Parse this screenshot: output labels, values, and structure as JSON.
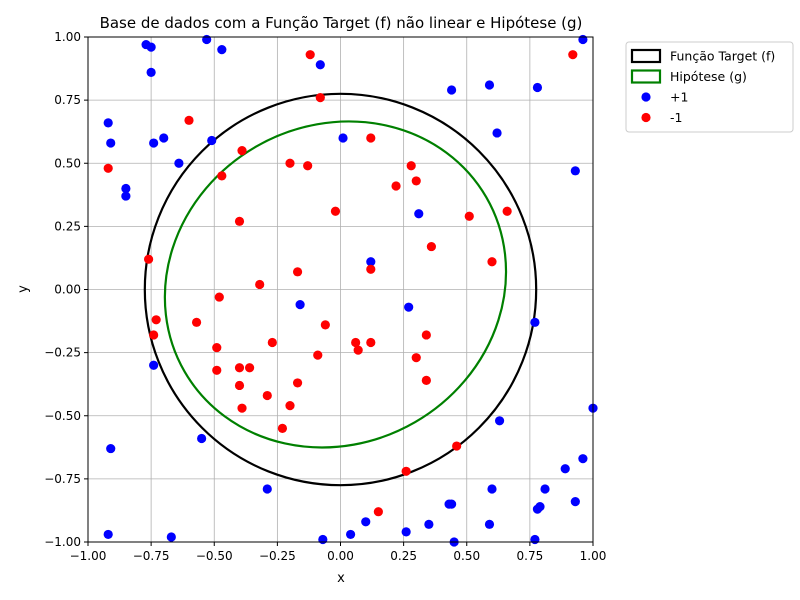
{
  "chart_data": {
    "type": "scatter",
    "title": "Base de dados com a Função Target (f) não linear e Hipótese (g)",
    "xlabel": "x",
    "ylabel": "y",
    "xlim": [
      -1.0,
      1.0
    ],
    "ylim": [
      -1.0,
      1.0
    ],
    "xticks": [
      "−1.00",
      "−0.75",
      "−0.50",
      "−0.25",
      "0.00",
      "0.25",
      "0.50",
      "0.75",
      "1.00"
    ],
    "yticks": [
      "−1.00",
      "−0.75",
      "−0.50",
      "−0.25",
      "0.00",
      "0.25",
      "0.50",
      "0.75",
      "1.00"
    ],
    "xtick_values": [
      -1.0,
      -0.75,
      -0.5,
      -0.25,
      0.0,
      0.25,
      0.5,
      0.75,
      1.0
    ],
    "ytick_values": [
      -1.0,
      -0.75,
      -0.5,
      -0.25,
      0.0,
      0.25,
      0.5,
      0.75,
      1.0
    ],
    "grid": true,
    "legend_position": "outside-right-top",
    "curves": [
      {
        "name": "Função Target (f)",
        "kind": "ellipse",
        "color": "#000000",
        "cx": 0.0,
        "cy": 0.0,
        "rx": 0.775,
        "ry": 0.775,
        "rotation_deg": 0
      },
      {
        "name": "Hipótese (g)",
        "kind": "ellipse",
        "color": "#008000",
        "cx": -0.02,
        "cy": 0.02,
        "rx": 0.69,
        "ry": 0.63,
        "rotation_deg": 30
      }
    ],
    "series": [
      {
        "name": "+1",
        "color": "#0000ff",
        "points": [
          [
            -0.77,
            0.97
          ],
          [
            -0.75,
            0.96
          ],
          [
            -0.53,
            0.99
          ],
          [
            -0.47,
            0.95
          ],
          [
            -0.08,
            0.89
          ],
          [
            0.44,
            0.79
          ],
          [
            0.59,
            0.81
          ],
          [
            0.78,
            0.8
          ],
          [
            0.96,
            0.99
          ],
          [
            0.62,
            0.62
          ],
          [
            -0.92,
            0.66
          ],
          [
            -0.91,
            0.58
          ],
          [
            -0.75,
            0.86
          ],
          [
            -0.74,
            0.58
          ],
          [
            -0.7,
            0.6
          ],
          [
            -0.64,
            0.5
          ],
          [
            -0.51,
            0.59
          ],
          [
            0.01,
            0.6
          ],
          [
            0.93,
            0.47
          ],
          [
            -0.85,
            0.4
          ],
          [
            -0.85,
            0.37
          ],
          [
            0.31,
            0.3
          ],
          [
            0.12,
            0.11
          ],
          [
            -0.16,
            -0.06
          ],
          [
            0.27,
            -0.07
          ],
          [
            0.77,
            -0.13
          ],
          [
            -0.74,
            -0.3
          ],
          [
            -0.55,
            -0.59
          ],
          [
            0.63,
            -0.52
          ],
          [
            1.0,
            -0.47
          ],
          [
            -0.91,
            -0.63
          ],
          [
            0.96,
            -0.67
          ],
          [
            0.89,
            -0.71
          ],
          [
            -0.29,
            -0.79
          ],
          [
            0.6,
            -0.79
          ],
          [
            0.81,
            -0.79
          ],
          [
            0.93,
            -0.84
          ],
          [
            0.43,
            -0.85
          ],
          [
            0.44,
            -0.85
          ],
          [
            0.79,
            -0.86
          ],
          [
            0.78,
            -0.87
          ],
          [
            0.1,
            -0.92
          ],
          [
            0.35,
            -0.93
          ],
          [
            0.59,
            -0.93
          ],
          [
            0.26,
            -0.96
          ],
          [
            0.04,
            -0.97
          ],
          [
            -0.92,
            -0.97
          ],
          [
            -0.67,
            -0.98
          ],
          [
            -0.07,
            -0.99
          ],
          [
            0.77,
            -0.99
          ],
          [
            0.45,
            -1.0
          ]
        ]
      },
      {
        "name": "-1",
        "color": "#ff0000",
        "points": [
          [
            -0.12,
            0.93
          ],
          [
            0.92,
            0.93
          ],
          [
            -0.08,
            0.76
          ],
          [
            -0.6,
            0.67
          ],
          [
            0.12,
            0.6
          ],
          [
            -0.39,
            0.55
          ],
          [
            -0.2,
            0.5
          ],
          [
            -0.13,
            0.49
          ],
          [
            0.28,
            0.49
          ],
          [
            -0.92,
            0.48
          ],
          [
            -0.47,
            0.45
          ],
          [
            0.3,
            0.43
          ],
          [
            0.22,
            0.41
          ],
          [
            -0.02,
            0.31
          ],
          [
            0.66,
            0.31
          ],
          [
            0.51,
            0.29
          ],
          [
            -0.4,
            0.27
          ],
          [
            0.36,
            0.17
          ],
          [
            -0.76,
            0.12
          ],
          [
            0.6,
            0.11
          ],
          [
            0.12,
            0.08
          ],
          [
            -0.17,
            0.07
          ],
          [
            -0.32,
            0.02
          ],
          [
            -0.48,
            -0.03
          ],
          [
            -0.73,
            -0.12
          ],
          [
            -0.57,
            -0.13
          ],
          [
            -0.06,
            -0.14
          ],
          [
            0.34,
            -0.18
          ],
          [
            -0.74,
            -0.18
          ],
          [
            -0.27,
            -0.21
          ],
          [
            0.06,
            -0.21
          ],
          [
            0.12,
            -0.21
          ],
          [
            -0.49,
            -0.23
          ],
          [
            0.07,
            -0.24
          ],
          [
            -0.09,
            -0.26
          ],
          [
            0.3,
            -0.27
          ],
          [
            -0.4,
            -0.31
          ],
          [
            -0.36,
            -0.31
          ],
          [
            -0.49,
            -0.32
          ],
          [
            0.34,
            -0.36
          ],
          [
            -0.4,
            -0.38
          ],
          [
            -0.17,
            -0.37
          ],
          [
            -0.29,
            -0.42
          ],
          [
            -0.2,
            -0.46
          ],
          [
            -0.39,
            -0.47
          ],
          [
            -0.23,
            -0.55
          ],
          [
            0.46,
            -0.62
          ],
          [
            0.26,
            -0.72
          ],
          [
            0.15,
            -0.88
          ]
        ]
      }
    ],
    "legend": [
      {
        "label": "Função Target (f)",
        "kind": "line-box",
        "color": "#000000"
      },
      {
        "label": "Hipótese (g)",
        "kind": "line-box",
        "color": "#008000"
      },
      {
        "label": "+1",
        "kind": "marker",
        "color": "#0000ff"
      },
      {
        "label": "-1",
        "kind": "marker",
        "color": "#ff0000"
      }
    ]
  }
}
